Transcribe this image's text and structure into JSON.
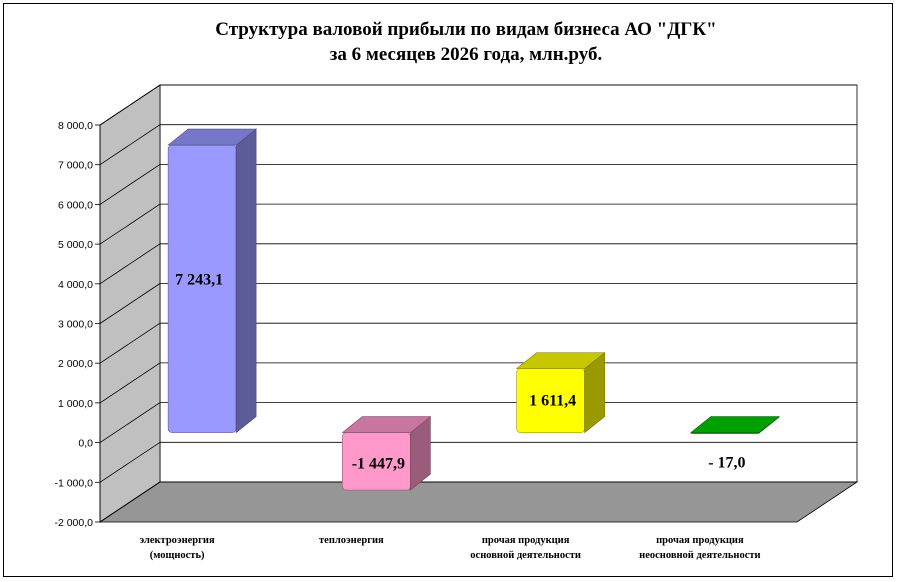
{
  "chart_data": {
    "type": "bar",
    "style": "3d-column",
    "title": [
      "Структура  валовой прибыли  по видам бизнеса АО  \"ДГК\"",
      "за  6 месяцев 2026 года, млн.руб."
    ],
    "categories": [
      [
        "электроэнергия",
        "(мощность)"
      ],
      [
        "теплоэнергия"
      ],
      [
        "прочая  продукция",
        "основной  деятельности"
      ],
      [
        "прочая  продукция",
        "неосновной  деятельности"
      ]
    ],
    "values": [
      7243.1,
      -1447.9,
      1611.4,
      -17.0
    ],
    "data_labels": [
      "7 243,1",
      "-1 447,9",
      "1 611,4",
      "- 17,0"
    ],
    "colors": [
      "#9999ff",
      "#ff99cc",
      "#ffff00",
      "#00cc00"
    ],
    "ylim": [
      -2000,
      8000
    ],
    "yticks": [
      -2000,
      -1000,
      0,
      1000,
      2000,
      3000,
      4000,
      5000,
      6000,
      7000,
      8000
    ],
    "ytick_labels": [
      "-2 000,0",
      "-1 000,0",
      "0,0",
      "1 000,0",
      "2 000,0",
      "3 000,0",
      "4 000,0",
      "5 000,0",
      "6 000,0",
      "7 000,0",
      "8 000,0"
    ],
    "grid": true,
    "legend": "none",
    "wall_color": "#c0c0c0",
    "floor_color": "#969696"
  }
}
